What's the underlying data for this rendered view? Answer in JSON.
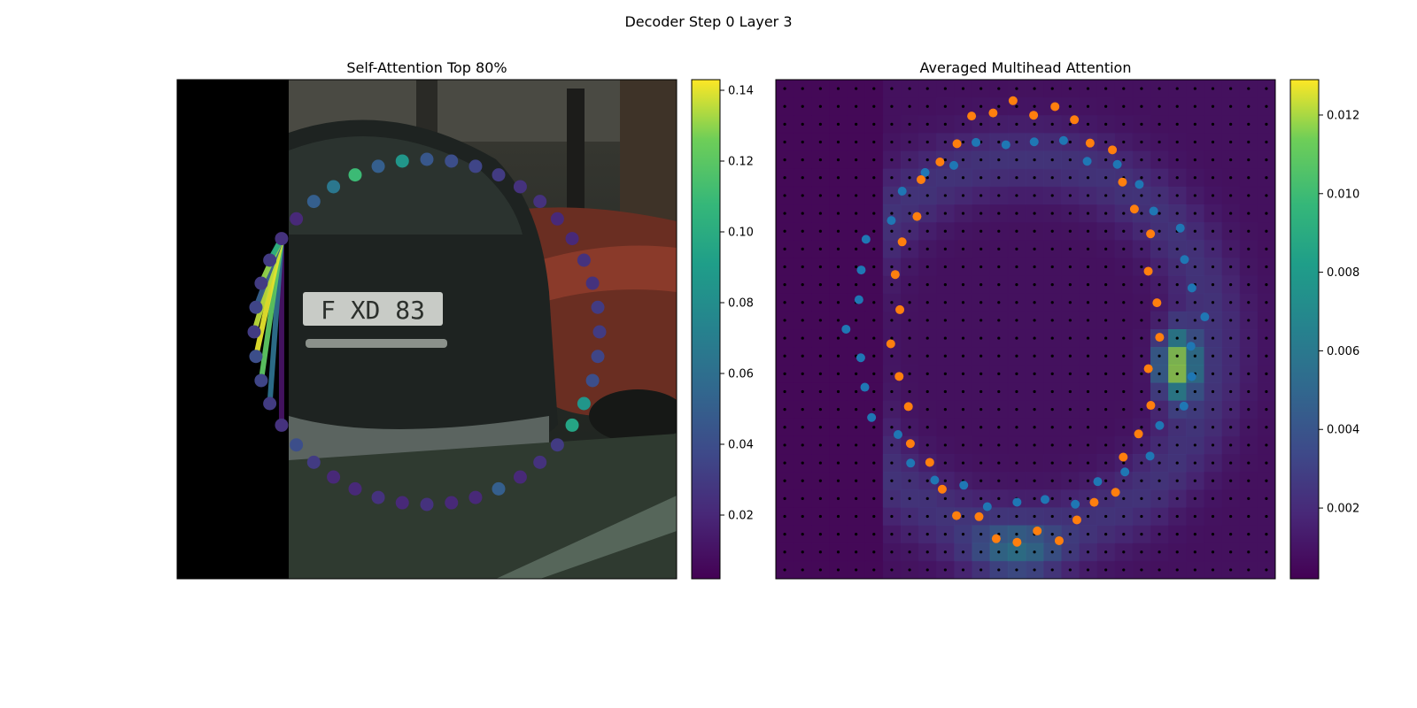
{
  "figure": {
    "suptitle": "Decoder Step 0 Layer 3"
  },
  "chart_data": [
    {
      "type": "scatter",
      "title": "Self-Attention Top 80%",
      "xlabel": "",
      "ylabel": "",
      "grid": false,
      "axis_visible": false,
      "background": "photo of rear of a dark BMW hatchback (plate \"F XD 83\") parked on a street, red car on right, left strip black",
      "colormap": "viridis",
      "colorbar": {
        "range": [
          0.002,
          0.143
        ],
        "ticks": [
          "0.02",
          "0.04",
          "0.06",
          "0.08",
          "0.10",
          "0.12",
          "0.14"
        ]
      },
      "query_point_index": 37,
      "points_value_order": "clockwise starting at top",
      "point_values": [
        0.045,
        0.04,
        0.035,
        0.03,
        0.025,
        0.025,
        0.02,
        0.02,
        0.025,
        0.025,
        0.03,
        0.03,
        0.035,
        0.04,
        0.085,
        0.095,
        0.03,
        0.025,
        0.02,
        0.05,
        0.02,
        0.02,
        0.025,
        0.02,
        0.025,
        0.02,
        0.02,
        0.03,
        0.04,
        0.025,
        0.03,
        0.035,
        0.04,
        0.03,
        0.035,
        0.03,
        0.03,
        0.025,
        0.02,
        0.05,
        0.065,
        0.11,
        0.05,
        0.085
      ],
      "attention_lines_values": [
        0.01,
        0.06,
        0.12,
        0.14,
        0.135,
        0.05,
        0.13,
        0.1
      ]
    },
    {
      "type": "heatmap",
      "title": "Averaged Multihead Attention",
      "xlabel": "",
      "ylabel": "",
      "grid": false,
      "axis_visible": false,
      "colormap": "viridis",
      "colorbar": {
        "range": [
          0.0002,
          0.0129
        ],
        "ticks": [
          "0.002",
          "0.004",
          "0.006",
          "0.008",
          "0.010",
          "0.012"
        ]
      },
      "grid_size": [
        28,
        28
      ],
      "reference_points": "black dots on regular grid",
      "series": [
        {
          "color": "#1f77b4",
          "marker": "circle"
        },
        {
          "color": "#ff7f0e",
          "marker": "circle"
        }
      ]
    }
  ],
  "colors": {
    "series_blue": "#1f77b4",
    "series_orange": "#ff7f0e",
    "text": "#000000"
  }
}
